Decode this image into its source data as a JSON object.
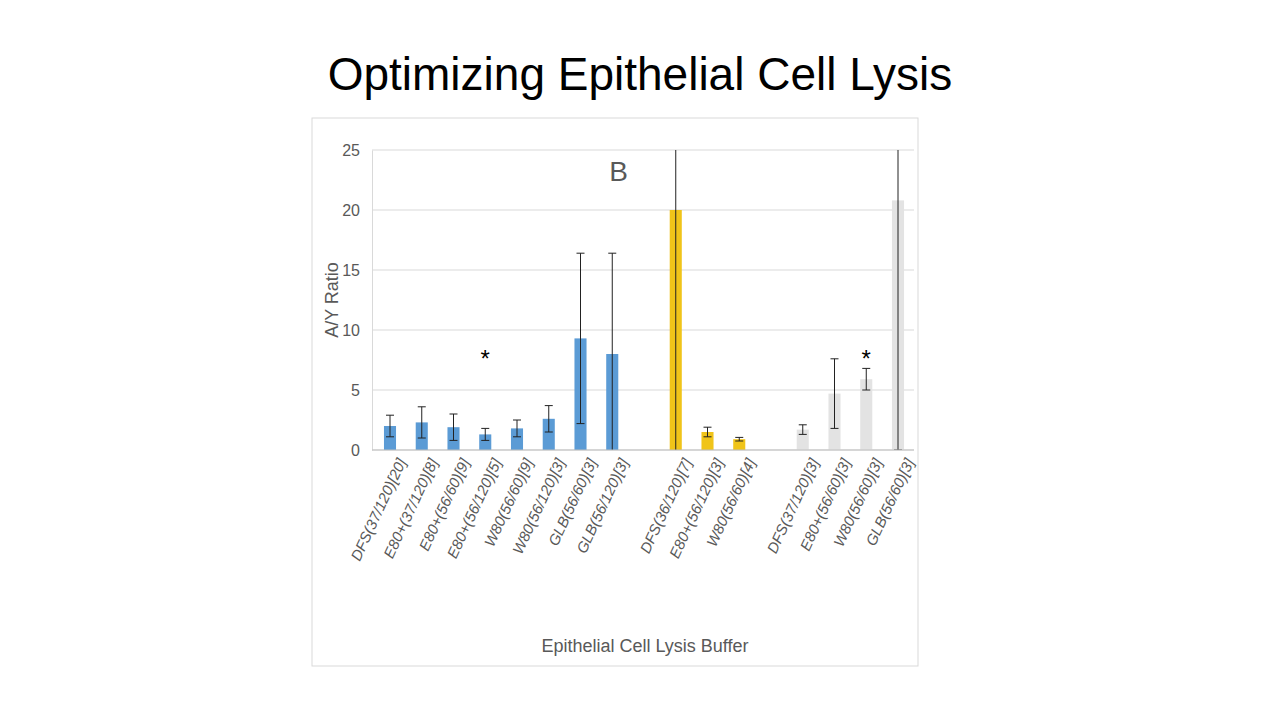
{
  "chart_data": {
    "type": "bar",
    "title": "Optimizing Epithelial Cell Lysis",
    "x_label": "Epithelial Cell Lysis Buffer",
    "y_label": "A/Y Ratio",
    "categories": [
      "DFS(37/120)[20]",
      "E80+(37/120)[8]",
      "E80+(56/60)[9]",
      "E80+(56/120)[5]",
      "W80(56/60)[9]",
      "W80(56/120)[3]",
      "GLB(56/60)[3]",
      "GLB(56/120)[3]",
      null,
      "DFS(36/120)[7]",
      "E80+(56/120)[3]",
      "W80(56/60)[4]",
      null,
      "DFS(37/120)[3]",
      "E80+(56/60)[3]",
      "W80(56/60)[3]",
      "GLB(56/60)[3]"
    ],
    "values": [
      2.0,
      2.3,
      1.9,
      1.3,
      1.8,
      2.6,
      9.3,
      8.0,
      null,
      20.0,
      1.5,
      0.9,
      null,
      1.7,
      4.7,
      5.9,
      20.8
    ],
    "errors": [
      0.9,
      1.3,
      1.1,
      0.5,
      0.7,
      1.1,
      7.1,
      8.4,
      null,
      20.5,
      0.4,
      0.15,
      null,
      0.4,
      2.9,
      0.9,
      20.8
    ],
    "colors": [
      "#5b9bd5",
      "#5b9bd5",
      "#5b9bd5",
      "#5b9bd5",
      "#5b9bd5",
      "#5b9bd5",
      "#5b9bd5",
      "#5b9bd5",
      null,
      "#f0c419",
      "#f0c419",
      "#f0c419",
      null,
      "#e3e3e3",
      "#e3e3e3",
      "#e3e3e3",
      "#e3e3e3"
    ],
    "ylim": [
      0,
      25
    ],
    "yticks": [
      0,
      5,
      10,
      15,
      20,
      25
    ],
    "grid": true,
    "annotations": [
      {
        "text": "B",
        "x": 7.2,
        "y": 23.2
      },
      {
        "text": "*",
        "x": 3,
        "y": 7.6
      },
      {
        "text": "*",
        "x": 15,
        "y": 7.6
      }
    ]
  }
}
